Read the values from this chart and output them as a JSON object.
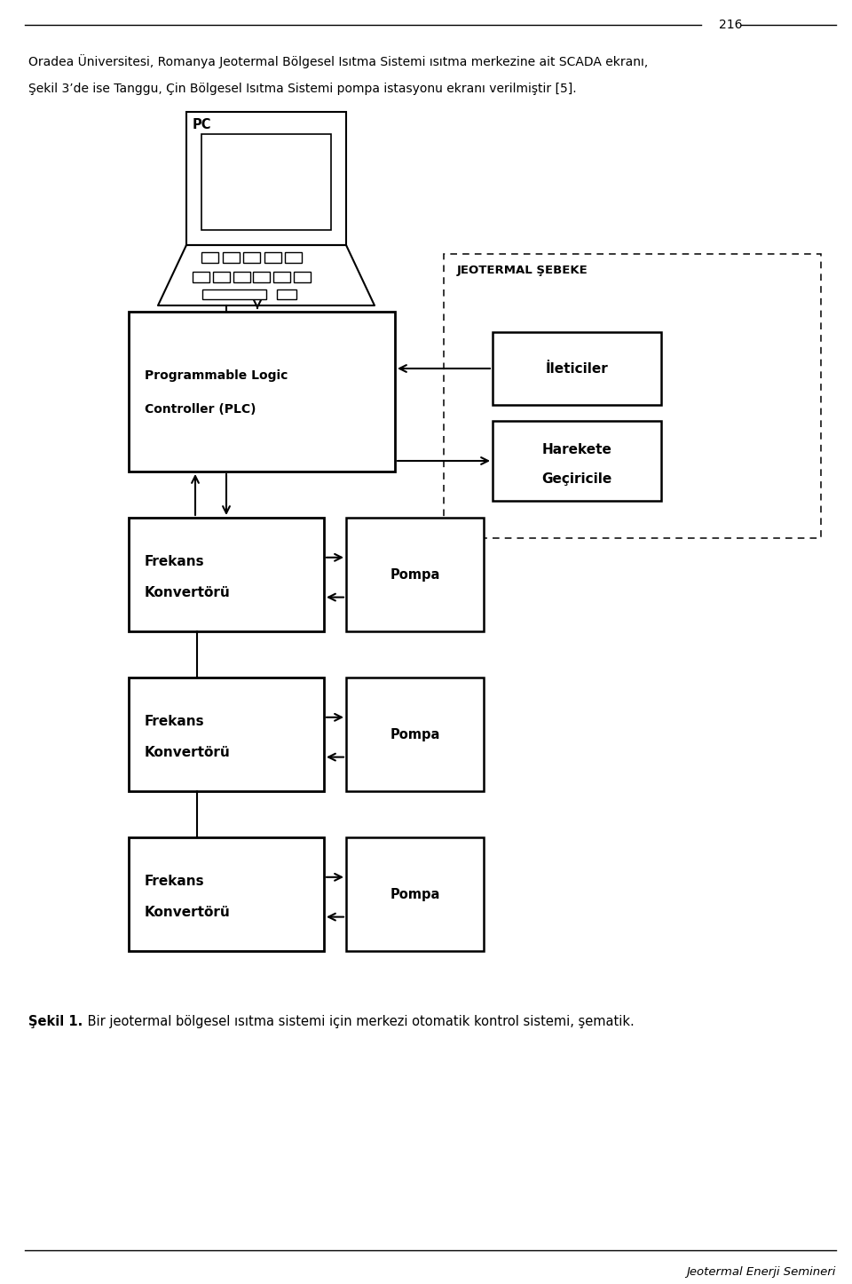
{
  "page_number": "216",
  "intro_text_1": "Oradea Üniversitesi, Romanya Jeotermal Bölgesel Isıtma Sistemi ısıtma merkezine ait SCADA ekranı,",
  "intro_text_2": "Şekil 3’de ise Tanggu, Çin Bölgesel Isıtma Sistemi pompa istasyonu ekranı verilmiştir [5].",
  "caption_bold": "Şekil 1.",
  "caption_rest": " Bir jeotermal bölgesel ısıtma sistemi için merkezi otomatik kontrol sistemi, şematik.",
  "footer_text": "Jeotermal Enerji Semineri",
  "pc_label": "PC",
  "jeotermal_label": "JEOTERMAL ŞEBEKE",
  "plc_text1": "Programmable Logic",
  "plc_text2": "Controller (PLC)",
  "ileticiler_label": "İleticiler",
  "harekete_label1": "Harekete",
  "harekete_label2": "Geçiricile",
  "frekans_label1": "Frekans",
  "frekans_label2": "Konvertörü",
  "pompa_label": "Pompa",
  "bg_color": "#ffffff",
  "line_color": "#000000"
}
